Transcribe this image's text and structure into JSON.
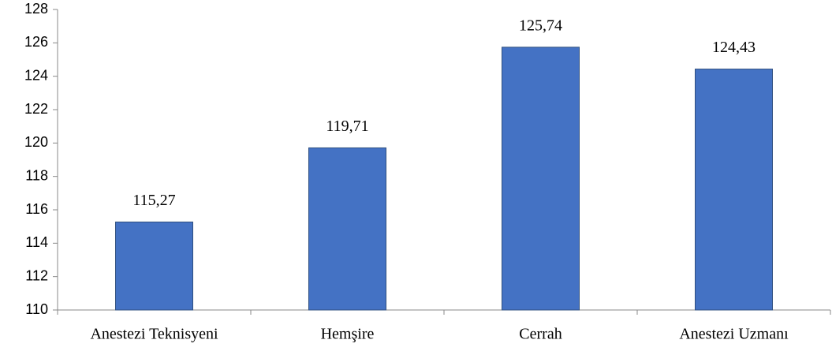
{
  "chart_data": {
    "type": "bar",
    "categories": [
      "Anestezi Teknisyeni",
      "Hemşire",
      "Cerrah",
      "Anestezi Uzmanı"
    ],
    "values": [
      115.27,
      119.71,
      125.74,
      124.43
    ],
    "value_labels": [
      "115,27",
      "119,71",
      "125,74",
      "124,43"
    ],
    "color": "#4472c4",
    "ylim": [
      110,
      128
    ],
    "yticks": [
      110,
      112,
      114,
      116,
      118,
      120,
      122,
      124,
      126,
      128
    ],
    "grid": false
  }
}
